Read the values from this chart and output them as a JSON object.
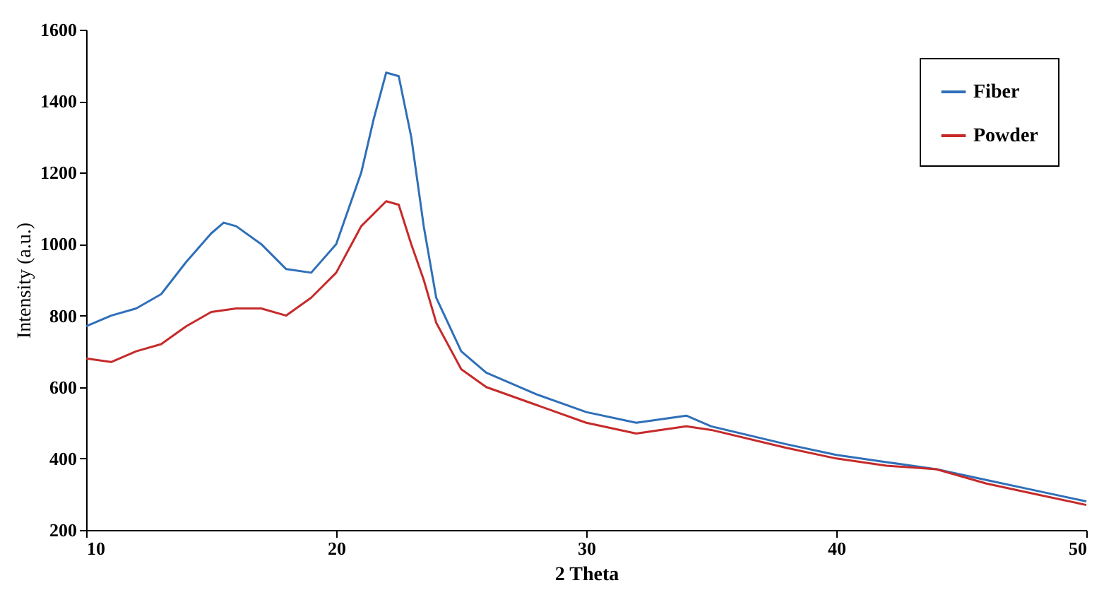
{
  "chart_data": {
    "type": "line",
    "xlabel": "2 Theta",
    "ylabel": "Intensity (a.u.)",
    "xlim": [
      10,
      50
    ],
    "xticks": [
      10,
      20,
      30,
      40,
      50
    ],
    "ylim": [
      200,
      1600
    ],
    "yticks": [
      200,
      400,
      600,
      800,
      1000,
      1200,
      1400,
      1600
    ],
    "grid": false,
    "legend": "top right",
    "marker": "none",
    "line_style": "solid",
    "series": [
      {
        "name": "Fiber",
        "color": "#2f6fb8",
        "x": [
          10,
          11,
          12,
          13,
          14,
          15,
          15.5,
          16,
          17,
          18,
          19,
          20,
          21,
          21.5,
          22,
          22.5,
          23,
          23.5,
          24,
          25,
          26,
          28,
          30,
          32,
          34,
          35,
          38,
          40,
          42,
          44,
          46,
          48,
          50
        ],
        "values": [
          770,
          800,
          820,
          860,
          950,
          1030,
          1060,
          1050,
          1000,
          930,
          920,
          1000,
          1200,
          1350,
          1480,
          1470,
          1300,
          1050,
          850,
          700,
          640,
          580,
          530,
          500,
          520,
          490,
          440,
          410,
          390,
          370,
          340,
          310,
          280
        ]
      },
      {
        "name": "Powder",
        "color": "#c62a2a",
        "x": [
          10,
          11,
          12,
          13,
          14,
          15,
          16,
          17,
          18,
          19,
          20,
          21,
          22,
          22.5,
          23,
          23.5,
          24,
          25,
          26,
          28,
          30,
          32,
          34,
          35,
          38,
          40,
          42,
          44,
          46,
          48,
          50
        ],
        "values": [
          680,
          670,
          700,
          720,
          770,
          810,
          820,
          820,
          800,
          850,
          920,
          1050,
          1120,
          1110,
          1000,
          900,
          780,
          650,
          600,
          550,
          500,
          470,
          490,
          480,
          430,
          400,
          380,
          370,
          330,
          300,
          270
        ]
      }
    ]
  }
}
